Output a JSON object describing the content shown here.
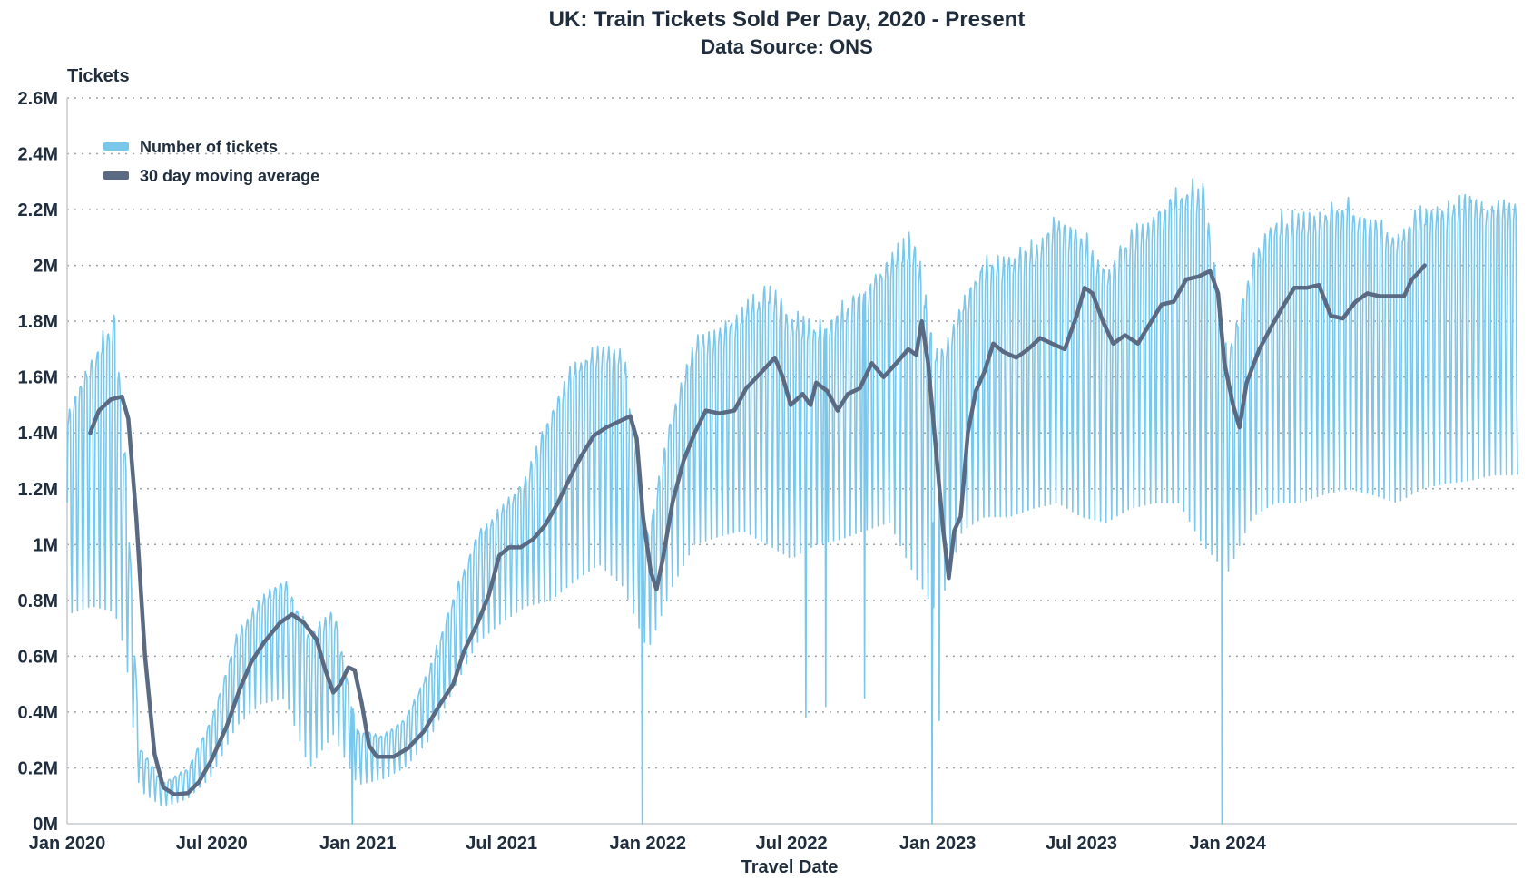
{
  "chart_data": {
    "type": "line",
    "title": "UK: Train Tickets Sold Per Day, 2020 - Present",
    "subtitle": "Data Source: ONS",
    "xlabel": "Travel Date",
    "ylabel": "Tickets",
    "x_start": "2020-01-01",
    "x_end": "2024-12-31",
    "ylim": [
      0,
      2600000
    ],
    "y_ticks": [
      0,
      200000,
      400000,
      600000,
      800000,
      1000000,
      1200000,
      1400000,
      1600000,
      1800000,
      2000000,
      2200000,
      2400000,
      2600000
    ],
    "y_tick_labels": [
      "0M",
      "0.2M",
      "0.4M",
      "0.6M",
      "0.8M",
      "1M",
      "1.2M",
      "1.4M",
      "1.6M",
      "1.8M",
      "2M",
      "2.2M",
      "2.4M",
      "2.6M"
    ],
    "x_ticks": [
      "2020-01-01",
      "2020-07-01",
      "2021-01-01",
      "2021-07-01",
      "2022-01-01",
      "2022-07-01",
      "2023-01-01",
      "2023-07-01",
      "2024-01-01"
    ],
    "x_tick_labels": [
      "Jan 2020",
      "Jul 2020",
      "Jan 2021",
      "Jul 2021",
      "Jan 2022",
      "Jul 2022",
      "Jan 2023",
      "Jul 2023",
      "Jan 2024"
    ],
    "grid": true,
    "legend_position": "top-left",
    "series": [
      {
        "name": "Number of tickets",
        "color": "#79c7ea",
        "style": "daily-weekly-oscillation",
        "weekday_peak": [
          [
            "2020-01-01",
            1500000
          ],
          [
            "2020-02-01",
            1700000
          ],
          [
            "2020-03-01",
            1850000
          ],
          [
            "2020-03-15",
            1300000
          ],
          [
            "2020-04-01",
            280000
          ],
          [
            "2020-05-01",
            150000
          ],
          [
            "2020-06-01",
            200000
          ],
          [
            "2020-07-01",
            380000
          ],
          [
            "2020-08-01",
            680000
          ],
          [
            "2020-09-01",
            820000
          ],
          [
            "2020-10-01",
            880000
          ],
          [
            "2020-11-01",
            700000
          ],
          [
            "2020-12-01",
            780000
          ],
          [
            "2021-01-01",
            340000
          ],
          [
            "2021-02-01",
            320000
          ],
          [
            "2021-03-01",
            380000
          ],
          [
            "2021-04-01",
            560000
          ],
          [
            "2021-05-01",
            820000
          ],
          [
            "2021-06-01",
            1050000
          ],
          [
            "2021-07-01",
            1150000
          ],
          [
            "2021-08-01",
            1250000
          ],
          [
            "2021-09-01",
            1500000
          ],
          [
            "2021-10-01",
            1680000
          ],
          [
            "2021-11-01",
            1720000
          ],
          [
            "2021-12-01",
            1720000
          ],
          [
            "2022-01-01",
            1050000
          ],
          [
            "2022-02-01",
            1500000
          ],
          [
            "2022-03-01",
            1750000
          ],
          [
            "2022-04-01",
            1780000
          ],
          [
            "2022-05-01",
            1870000
          ],
          [
            "2022-06-01",
            1950000
          ],
          [
            "2022-07-01",
            1850000
          ],
          [
            "2022-08-01",
            1800000
          ],
          [
            "2022-09-01",
            1870000
          ],
          [
            "2022-10-01",
            1950000
          ],
          [
            "2022-11-01",
            2050000
          ],
          [
            "2022-12-01",
            2150000
          ],
          [
            "2023-01-01",
            1700000
          ],
          [
            "2023-02-01",
            1900000
          ],
          [
            "2023-03-01",
            2050000
          ],
          [
            "2023-04-01",
            2050000
          ],
          [
            "2023-05-01",
            2100000
          ],
          [
            "2023-06-01",
            2200000
          ],
          [
            "2023-07-01",
            2150000
          ],
          [
            "2023-08-01",
            2000000
          ],
          [
            "2023-09-01",
            2150000
          ],
          [
            "2023-10-01",
            2220000
          ],
          [
            "2023-11-01",
            2300000
          ],
          [
            "2023-12-01",
            2350000
          ],
          [
            "2024-01-01",
            1700000
          ],
          [
            "2024-02-01",
            2050000
          ],
          [
            "2024-03-01",
            2200000
          ],
          [
            "2024-04-01",
            2200000
          ],
          [
            "2024-05-01",
            2230000
          ],
          [
            "2024-06-01",
            2250000
          ],
          [
            "2024-07-01",
            2200000
          ],
          [
            "2024-08-01",
            2150000
          ],
          [
            "2024-09-01",
            2230000
          ],
          [
            "2024-10-01",
            2250000
          ],
          [
            "2024-11-01",
            2280000
          ],
          [
            "2024-12-01",
            2250000
          ]
        ],
        "weekend_trough": [
          [
            "2020-01-01",
            750000
          ],
          [
            "2020-02-01",
            780000
          ],
          [
            "2020-03-01",
            760000
          ],
          [
            "2020-03-15",
            600000
          ],
          [
            "2020-04-01",
            120000
          ],
          [
            "2020-05-01",
            60000
          ],
          [
            "2020-06-01",
            90000
          ],
          [
            "2020-07-01",
            170000
          ],
          [
            "2020-08-01",
            350000
          ],
          [
            "2020-09-01",
            430000
          ],
          [
            "2020-10-01",
            450000
          ],
          [
            "2020-11-01",
            200000
          ],
          [
            "2020-12-01",
            320000
          ],
          [
            "2021-01-01",
            140000
          ],
          [
            "2021-02-01",
            160000
          ],
          [
            "2021-03-01",
            200000
          ],
          [
            "2021-04-01",
            300000
          ],
          [
            "2021-05-01",
            480000
          ],
          [
            "2021-06-01",
            650000
          ],
          [
            "2021-07-01",
            720000
          ],
          [
            "2021-08-01",
            780000
          ],
          [
            "2021-09-01",
            800000
          ],
          [
            "2021-10-01",
            870000
          ],
          [
            "2021-11-01",
            930000
          ],
          [
            "2021-12-01",
            850000
          ],
          [
            "2022-01-01",
            620000
          ],
          [
            "2022-02-01",
            850000
          ],
          [
            "2022-03-01",
            1000000
          ],
          [
            "2022-04-01",
            1030000
          ],
          [
            "2022-05-01",
            1050000
          ],
          [
            "2022-06-01",
            1000000
          ],
          [
            "2022-07-01",
            950000
          ],
          [
            "2022-08-01",
            1000000
          ],
          [
            "2022-09-01",
            1020000
          ],
          [
            "2022-10-01",
            1050000
          ],
          [
            "2022-11-01",
            1080000
          ],
          [
            "2022-12-01",
            900000
          ],
          [
            "2023-01-01",
            750000
          ],
          [
            "2023-02-01",
            1050000
          ],
          [
            "2023-03-01",
            1100000
          ],
          [
            "2023-04-01",
            1100000
          ],
          [
            "2023-05-01",
            1130000
          ],
          [
            "2023-06-01",
            1150000
          ],
          [
            "2023-07-01",
            1100000
          ],
          [
            "2023-08-01",
            1080000
          ],
          [
            "2023-09-01",
            1130000
          ],
          [
            "2023-10-01",
            1150000
          ],
          [
            "2023-11-01",
            1150000
          ],
          [
            "2023-12-01",
            1000000
          ],
          [
            "2024-01-01",
            900000
          ],
          [
            "2024-02-01",
            1100000
          ],
          [
            "2024-03-01",
            1150000
          ],
          [
            "2024-04-01",
            1150000
          ],
          [
            "2024-05-01",
            1180000
          ],
          [
            "2024-06-01",
            1200000
          ],
          [
            "2024-07-01",
            1180000
          ],
          [
            "2024-08-01",
            1150000
          ],
          [
            "2024-09-01",
            1200000
          ],
          [
            "2024-10-01",
            1220000
          ],
          [
            "2024-11-01",
            1230000
          ],
          [
            "2024-12-01",
            1250000
          ]
        ],
        "annotated_dips": [
          [
            "2020-12-25",
            0
          ],
          [
            "2021-12-25",
            0
          ],
          [
            "2022-12-25",
            0
          ],
          [
            "2023-12-25",
            0
          ],
          [
            "2022-07-19",
            380000
          ],
          [
            "2022-08-13",
            420000
          ],
          [
            "2022-10-01",
            450000
          ],
          [
            "2023-01-03",
            370000
          ]
        ]
      },
      {
        "name": "30 day moving average",
        "color": "#5a6a82",
        "points": [
          [
            "2020-01-30",
            1400000
          ],
          [
            "2020-02-10",
            1480000
          ],
          [
            "2020-02-25",
            1520000
          ],
          [
            "2020-03-10",
            1530000
          ],
          [
            "2020-03-18",
            1450000
          ],
          [
            "2020-03-28",
            1100000
          ],
          [
            "2020-04-08",
            600000
          ],
          [
            "2020-04-20",
            250000
          ],
          [
            "2020-05-01",
            130000
          ],
          [
            "2020-05-15",
            105000
          ],
          [
            "2020-06-01",
            110000
          ],
          [
            "2020-06-15",
            150000
          ],
          [
            "2020-07-01",
            230000
          ],
          [
            "2020-07-20",
            350000
          ],
          [
            "2020-08-05",
            480000
          ],
          [
            "2020-08-20",
            580000
          ],
          [
            "2020-09-05",
            650000
          ],
          [
            "2020-09-25",
            720000
          ],
          [
            "2020-10-10",
            750000
          ],
          [
            "2020-10-25",
            720000
          ],
          [
            "2020-11-10",
            660000
          ],
          [
            "2020-11-20",
            560000
          ],
          [
            "2020-12-01",
            470000
          ],
          [
            "2020-12-10",
            500000
          ],
          [
            "2020-12-20",
            560000
          ],
          [
            "2020-12-28",
            550000
          ],
          [
            "2021-01-06",
            430000
          ],
          [
            "2021-01-15",
            280000
          ],
          [
            "2021-01-25",
            240000
          ],
          [
            "2021-02-15",
            240000
          ],
          [
            "2021-03-05",
            270000
          ],
          [
            "2021-03-25",
            330000
          ],
          [
            "2021-04-15",
            430000
          ],
          [
            "2021-05-01",
            500000
          ],
          [
            "2021-05-15",
            620000
          ],
          [
            "2021-06-01",
            720000
          ],
          [
            "2021-06-15",
            820000
          ],
          [
            "2021-06-28",
            960000
          ],
          [
            "2021-07-10",
            990000
          ],
          [
            "2021-07-25",
            990000
          ],
          [
            "2021-08-10",
            1020000
          ],
          [
            "2021-08-25",
            1070000
          ],
          [
            "2021-09-10",
            1150000
          ],
          [
            "2021-09-25",
            1240000
          ],
          [
            "2021-10-10",
            1320000
          ],
          [
            "2021-10-25",
            1390000
          ],
          [
            "2021-11-10",
            1420000
          ],
          [
            "2021-11-25",
            1440000
          ],
          [
            "2021-12-10",
            1460000
          ],
          [
            "2021-12-18",
            1380000
          ],
          [
            "2021-12-26",
            1100000
          ],
          [
            "2022-01-05",
            900000
          ],
          [
            "2022-01-12",
            840000
          ],
          [
            "2022-01-20",
            950000
          ],
          [
            "2022-02-01",
            1150000
          ],
          [
            "2022-02-15",
            1300000
          ],
          [
            "2022-03-01",
            1400000
          ],
          [
            "2022-03-15",
            1480000
          ],
          [
            "2022-04-01",
            1470000
          ],
          [
            "2022-04-20",
            1480000
          ],
          [
            "2022-05-05",
            1560000
          ],
          [
            "2022-05-25",
            1620000
          ],
          [
            "2022-06-10",
            1670000
          ],
          [
            "2022-06-20",
            1600000
          ],
          [
            "2022-06-30",
            1500000
          ],
          [
            "2022-07-15",
            1540000
          ],
          [
            "2022-07-25",
            1500000
          ],
          [
            "2022-08-01",
            1580000
          ],
          [
            "2022-08-15",
            1550000
          ],
          [
            "2022-08-28",
            1480000
          ],
          [
            "2022-09-10",
            1540000
          ],
          [
            "2022-09-25",
            1560000
          ],
          [
            "2022-10-10",
            1650000
          ],
          [
            "2022-10-25",
            1600000
          ],
          [
            "2022-11-10",
            1650000
          ],
          [
            "2022-11-25",
            1700000
          ],
          [
            "2022-12-05",
            1680000
          ],
          [
            "2022-12-12",
            1800000
          ],
          [
            "2022-12-20",
            1650000
          ],
          [
            "2022-12-28",
            1400000
          ],
          [
            "2023-01-08",
            1050000
          ],
          [
            "2023-01-15",
            880000
          ],
          [
            "2023-01-22",
            1050000
          ],
          [
            "2023-01-30",
            1100000
          ],
          [
            "2023-02-08",
            1400000
          ],
          [
            "2023-02-18",
            1550000
          ],
          [
            "2023-03-01",
            1620000
          ],
          [
            "2023-03-12",
            1720000
          ],
          [
            "2023-03-25",
            1690000
          ],
          [
            "2023-04-10",
            1670000
          ],
          [
            "2023-04-25",
            1700000
          ],
          [
            "2023-05-10",
            1740000
          ],
          [
            "2023-05-25",
            1720000
          ],
          [
            "2023-06-10",
            1700000
          ],
          [
            "2023-06-25",
            1820000
          ],
          [
            "2023-07-05",
            1920000
          ],
          [
            "2023-07-15",
            1900000
          ],
          [
            "2023-07-28",
            1800000
          ],
          [
            "2023-08-10",
            1720000
          ],
          [
            "2023-08-25",
            1750000
          ],
          [
            "2023-09-10",
            1720000
          ],
          [
            "2023-09-25",
            1790000
          ],
          [
            "2023-10-10",
            1860000
          ],
          [
            "2023-10-25",
            1870000
          ],
          [
            "2023-11-10",
            1950000
          ],
          [
            "2023-11-25",
            1960000
          ],
          [
            "2023-12-10",
            1980000
          ],
          [
            "2023-12-20",
            1900000
          ],
          [
            "2023-12-28",
            1650000
          ],
          [
            "2024-01-08",
            1500000
          ],
          [
            "2024-01-16",
            1420000
          ],
          [
            "2024-01-25",
            1580000
          ],
          [
            "2024-02-10",
            1700000
          ],
          [
            "2024-02-25",
            1780000
          ],
          [
            "2024-03-10",
            1850000
          ],
          [
            "2024-03-25",
            1920000
          ],
          [
            "2024-04-10",
            1920000
          ],
          [
            "2024-04-25",
            1930000
          ],
          [
            "2024-05-10",
            1820000
          ],
          [
            "2024-05-25",
            1810000
          ],
          [
            "2024-06-10",
            1870000
          ],
          [
            "2024-06-25",
            1900000
          ],
          [
            "2024-07-10",
            1890000
          ],
          [
            "2024-07-25",
            1890000
          ],
          [
            "2024-08-10",
            1890000
          ],
          [
            "2024-08-20",
            1950000
          ],
          [
            "2024-08-30",
            1980000
          ],
          [
            "2024-09-05",
            2000000
          ]
        ]
      }
    ]
  }
}
